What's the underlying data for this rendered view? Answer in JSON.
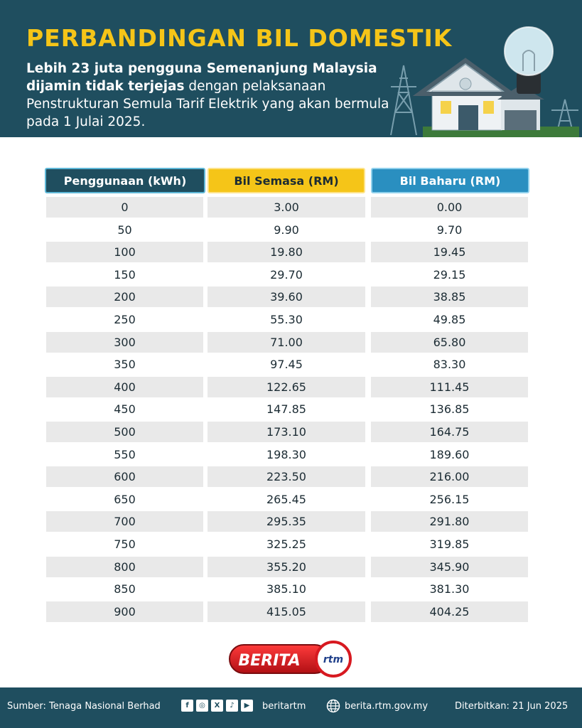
{
  "header": {
    "title": "PERBANDINGAN BIL DOMESTIK",
    "subtitle_bold": "Lebih 23 juta pengguna Semenanjung Malaysia dijamin tidak terjejas",
    "subtitle_rest": " dengan pelaksanaan Penstrukturan Semula Tarif Elektrik yang akan bermula pada 1 Julai 2025."
  },
  "table": {
    "columns": [
      "Penggunaan (kWh)",
      "Bil Semasa (RM)",
      "Bil Baharu (RM)"
    ],
    "rows": [
      [
        "0",
        "3.00",
        "0.00"
      ],
      [
        "50",
        "9.90",
        "9.70"
      ],
      [
        "100",
        "19.80",
        "19.45"
      ],
      [
        "150",
        "29.70",
        "29.15"
      ],
      [
        "200",
        "39.60",
        "38.85"
      ],
      [
        "250",
        "55.30",
        "49.85"
      ],
      [
        "300",
        "71.00",
        "65.80"
      ],
      [
        "350",
        "97.45",
        "83.30"
      ],
      [
        "400",
        "122.65",
        "111.45"
      ],
      [
        "450",
        "147.85",
        "136.85"
      ],
      [
        "500",
        "173.10",
        "164.75"
      ],
      [
        "550",
        "198.30",
        "189.60"
      ],
      [
        "600",
        "223.50",
        "216.00"
      ],
      [
        "650",
        "265.45",
        "256.15"
      ],
      [
        "700",
        "295.35",
        "291.80"
      ],
      [
        "750",
        "325.25",
        "319.85"
      ],
      [
        "800",
        "355.20",
        "345.90"
      ],
      [
        "850",
        "385.10",
        "381.30"
      ],
      [
        "900",
        "415.05",
        "404.25"
      ]
    ]
  },
  "logo": {
    "text": "BERITA",
    "mark": "rtm"
  },
  "footer": {
    "source": "Sumber: Tenaga Nasional Berhad",
    "socials": [
      "facebook-icon",
      "instagram-icon",
      "x-icon",
      "tiktok-icon",
      "youtube-icon"
    ],
    "handle": "beritartm",
    "website": "berita.rtm.gov.my",
    "published": "Diterbitkan: 21 Jun 2025"
  },
  "colors": {
    "navy": "#1f4e5f",
    "yellow": "#f5c518",
    "blue": "#2a8fc0",
    "row_alt": "#e9e9e9",
    "logo_red": "#d71920"
  }
}
